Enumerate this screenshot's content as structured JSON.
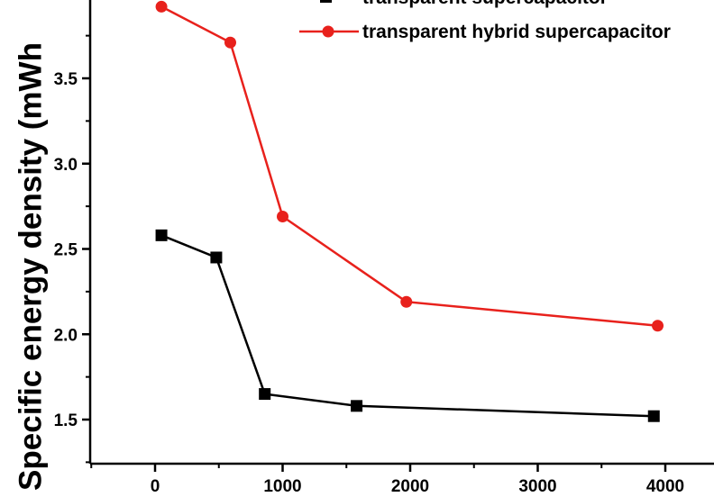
{
  "chart_data": {
    "type": "line",
    "title": "",
    "xlabel": "",
    "ylabel": "Specific energy density (mWh",
    "xlim": [
      -500,
      4400
    ],
    "ylim": [
      1.25,
      4.0
    ],
    "x_ticks": [
      0,
      1000,
      2000,
      3000,
      4000
    ],
    "x_tick_labels": [
      "0",
      "1000",
      "2000",
      "3000",
      "4000"
    ],
    "y_ticks": [
      1.5,
      2.0,
      2.5,
      3.0,
      3.5
    ],
    "y_tick_labels": [
      "1.5",
      "2.0",
      "2.5",
      "3.0",
      "3.5"
    ],
    "grid": false,
    "legend_position": "top-right",
    "series": [
      {
        "name": "transparent supercapacitor",
        "color": "#000000",
        "marker": "square",
        "x": [
          50,
          480,
          860,
          1580,
          3910
        ],
        "y": [
          2.58,
          2.45,
          1.65,
          1.58,
          1.52
        ]
      },
      {
        "name": "transparent hybrid supercapacitor",
        "color": "#e8211c",
        "marker": "circle",
        "x": [
          50,
          590,
          1000,
          1970,
          3940
        ],
        "y": [
          3.92,
          3.71,
          2.69,
          2.19,
          2.05
        ]
      }
    ]
  }
}
